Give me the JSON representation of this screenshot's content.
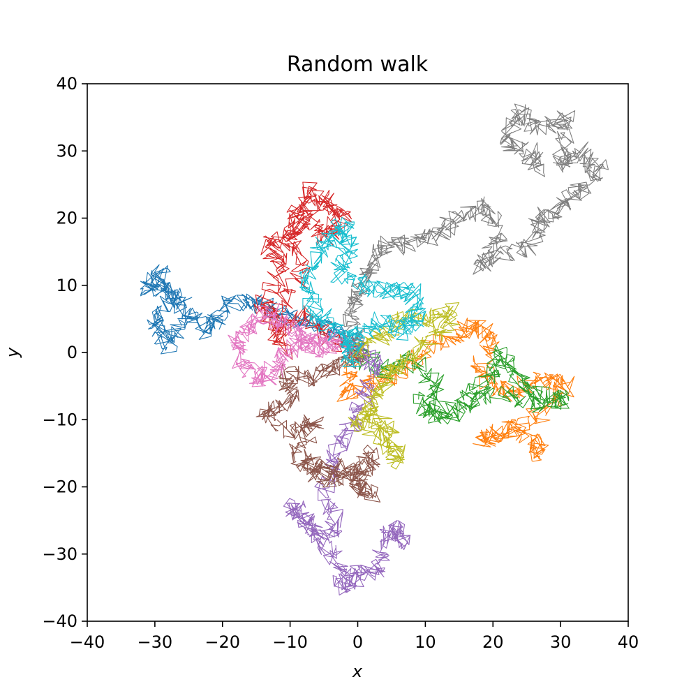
{
  "chart_data": {
    "type": "line",
    "title": "Random walk",
    "xlabel": "x",
    "ylabel": "y",
    "xlim": [
      -40,
      40
    ],
    "ylim": [
      -40,
      40
    ],
    "grid": false,
    "xticks": [
      -40,
      -30,
      -20,
      -10,
      0,
      10,
      20,
      30,
      40
    ],
    "yticks": [
      -40,
      -30,
      -20,
      -10,
      0,
      10,
      20,
      30,
      40
    ],
    "series": [
      {
        "color": "#1f77b4",
        "waypoints": [
          [
            0,
            0
          ],
          [
            -2,
            2
          ],
          [
            -5,
            4
          ],
          [
            -9,
            5
          ],
          [
            -13,
            6
          ],
          [
            -16,
            8
          ],
          [
            -20,
            7
          ],
          [
            -22,
            3
          ],
          [
            -25,
            6
          ],
          [
            -28,
            9
          ],
          [
            -31,
            10
          ],
          [
            -29,
            12
          ],
          [
            -27,
            8
          ],
          [
            -30,
            5
          ],
          [
            -28,
            1
          ],
          [
            -26,
            4
          ]
        ]
      },
      {
        "color": "#ff7f0e",
        "waypoints": [
          [
            0,
            0
          ],
          [
            -2,
            -6
          ],
          [
            2,
            -5
          ],
          [
            6,
            -3
          ],
          [
            10,
            0
          ],
          [
            14,
            2
          ],
          [
            17,
            4
          ],
          [
            20,
            2
          ],
          [
            18,
            -3
          ],
          [
            21,
            -6
          ],
          [
            24,
            -5
          ],
          [
            28,
            -4
          ],
          [
            31,
            -5
          ],
          [
            27,
            -9
          ],
          [
            22,
            -12
          ],
          [
            18,
            -13
          ],
          [
            23,
            -11
          ],
          [
            27,
            -15
          ],
          [
            26,
            -13
          ]
        ]
      },
      {
        "color": "#2ca02c",
        "waypoints": [
          [
            0,
            0
          ],
          [
            4,
            -3
          ],
          [
            8,
            -1
          ],
          [
            12,
            -5
          ],
          [
            10,
            -9
          ],
          [
            15,
            -8
          ],
          [
            19,
            -4
          ],
          [
            21,
            0
          ],
          [
            23,
            -3
          ],
          [
            26,
            -6
          ],
          [
            31,
            -7
          ],
          [
            27,
            -8
          ],
          [
            22,
            -6
          ],
          [
            17,
            -7
          ],
          [
            13,
            -10
          ],
          [
            9,
            -7
          ]
        ]
      },
      {
        "color": "#d62728",
        "waypoints": [
          [
            0,
            0
          ],
          [
            -4,
            2
          ],
          [
            -8,
            6
          ],
          [
            -12,
            3
          ],
          [
            -14,
            7
          ],
          [
            -11,
            13
          ],
          [
            -13,
            16
          ],
          [
            -10,
            17
          ],
          [
            -9,
            21
          ],
          [
            -7,
            24
          ],
          [
            -4,
            22
          ],
          [
            -2,
            20
          ],
          [
            -5,
            17
          ],
          [
            -7,
            20
          ],
          [
            -10,
            17
          ],
          [
            -8,
            12
          ],
          [
            -13,
            5
          ],
          [
            -11,
            0
          ]
        ]
      },
      {
        "color": "#9467bd",
        "waypoints": [
          [
            0,
            0
          ],
          [
            3,
            -2
          ],
          [
            1,
            -7
          ],
          [
            -1,
            -11
          ],
          [
            -3,
            -15
          ],
          [
            -5,
            -20
          ],
          [
            -3,
            -26
          ],
          [
            -6,
            -27
          ],
          [
            -8,
            -24
          ],
          [
            -10,
            -23
          ],
          [
            -7,
            -27
          ],
          [
            -3,
            -31
          ],
          [
            -2,
            -35
          ],
          [
            0,
            -33
          ],
          [
            3,
            -32
          ],
          [
            4,
            -28
          ],
          [
            6,
            -26
          ],
          [
            7,
            -29
          ]
        ]
      },
      {
        "color": "#8c564b",
        "waypoints": [
          [
            0,
            0
          ],
          [
            -3,
            -2
          ],
          [
            -7,
            -4
          ],
          [
            -11,
            -3
          ],
          [
            -10,
            -7
          ],
          [
            -14,
            -9
          ],
          [
            -10,
            -12
          ],
          [
            -6,
            -10
          ],
          [
            -9,
            -15
          ],
          [
            -7,
            -17
          ],
          [
            -3,
            -17
          ],
          [
            0,
            -18
          ],
          [
            2,
            -15
          ],
          [
            0,
            -20
          ],
          [
            2,
            -21
          ],
          [
            -1,
            -18
          ],
          [
            -5,
            -19
          ],
          [
            -7,
            -17
          ]
        ]
      },
      {
        "color": "#e377c2",
        "waypoints": [
          [
            0,
            0
          ],
          [
            -3,
            2
          ],
          [
            -5,
            1
          ],
          [
            -8,
            3
          ],
          [
            -11,
            4
          ],
          [
            -13,
            6
          ],
          [
            -16,
            4
          ],
          [
            -18,
            2
          ],
          [
            -17,
            -2
          ],
          [
            -14,
            -4
          ],
          [
            -12,
            -2
          ],
          [
            -10,
            1
          ],
          [
            -7,
            2
          ],
          [
            -6,
            0
          ]
        ]
      },
      {
        "color": "#7f7f7f",
        "waypoints": [
          [
            0,
            0
          ],
          [
            -1,
            5
          ],
          [
            0,
            9
          ],
          [
            2,
            13
          ],
          [
            4,
            16
          ],
          [
            8,
            16
          ],
          [
            12,
            18
          ],
          [
            15,
            20
          ],
          [
            19,
            22
          ],
          [
            21,
            17
          ],
          [
            18,
            13
          ],
          [
            22,
            15
          ],
          [
            26,
            16
          ],
          [
            27,
            20
          ],
          [
            30,
            22
          ],
          [
            33,
            24
          ],
          [
            36,
            27
          ],
          [
            33,
            30
          ],
          [
            30,
            28
          ],
          [
            31,
            35
          ],
          [
            27,
            33
          ],
          [
            24,
            36
          ],
          [
            22,
            32
          ],
          [
            25,
            30
          ],
          [
            27,
            27
          ]
        ]
      },
      {
        "color": "#bcbd22",
        "waypoints": [
          [
            0,
            0
          ],
          [
            3,
            2
          ],
          [
            6,
            5
          ],
          [
            10,
            5
          ],
          [
            14,
            6
          ],
          [
            12,
            3
          ],
          [
            8,
            -1
          ],
          [
            5,
            -3
          ],
          [
            3,
            -6
          ],
          [
            1,
            -10
          ],
          [
            4,
            -13
          ],
          [
            6,
            -16
          ],
          [
            5,
            -12
          ],
          [
            2,
            -9
          ],
          [
            -1,
            -11
          ]
        ]
      },
      {
        "color": "#17becf",
        "waypoints": [
          [
            0,
            0
          ],
          [
            -3,
            3
          ],
          [
            -6,
            6
          ],
          [
            -8,
            10
          ],
          [
            -6,
            14
          ],
          [
            -4,
            17
          ],
          [
            -2,
            19
          ],
          [
            -1,
            16
          ],
          [
            -3,
            12
          ],
          [
            1,
            10
          ],
          [
            5,
            9
          ],
          [
            8,
            9
          ],
          [
            9,
            5
          ],
          [
            7,
            3
          ],
          [
            4,
            5
          ],
          [
            1,
            3
          ],
          [
            -2,
            2
          ],
          [
            -1,
            -2
          ]
        ]
      }
    ]
  }
}
